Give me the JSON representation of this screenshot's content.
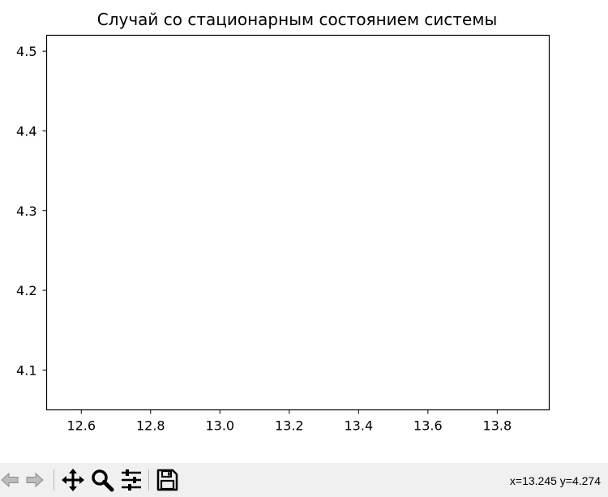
{
  "chart_data": {
    "type": "line",
    "title": "Случай со стационарным состоянием системы",
    "xlabel": "",
    "ylabel": "",
    "xlim": [
      12.5,
      13.95
    ],
    "ylim": [
      4.05,
      4.52
    ],
    "x_ticks": [
      12.6,
      12.8,
      13.0,
      13.2,
      13.4,
      13.6,
      13.8
    ],
    "x_tick_labels": [
      "12.6",
      "12.8",
      "13.0",
      "13.2",
      "13.4",
      "13.6",
      "13.8"
    ],
    "y_ticks": [
      4.1,
      4.2,
      4.3,
      4.4,
      4.5
    ],
    "y_tick_labels": [
      "4.1",
      "4.2",
      "4.3",
      "4.4",
      "4.5"
    ],
    "series": [],
    "grid": false
  },
  "toolbar": {
    "buttons": [
      {
        "name": "back-button",
        "icon": "arrow-left-icon"
      },
      {
        "name": "forward-button",
        "icon": "arrow-right-icon"
      },
      {
        "name": "pan-button",
        "icon": "move-icon"
      },
      {
        "name": "zoom-button",
        "icon": "magnifier-icon"
      },
      {
        "name": "configure-subplots-button",
        "icon": "sliders-icon"
      },
      {
        "name": "save-button",
        "icon": "floppy-disk-icon"
      }
    ],
    "coordinates": "x=13.245 y=4.274"
  }
}
